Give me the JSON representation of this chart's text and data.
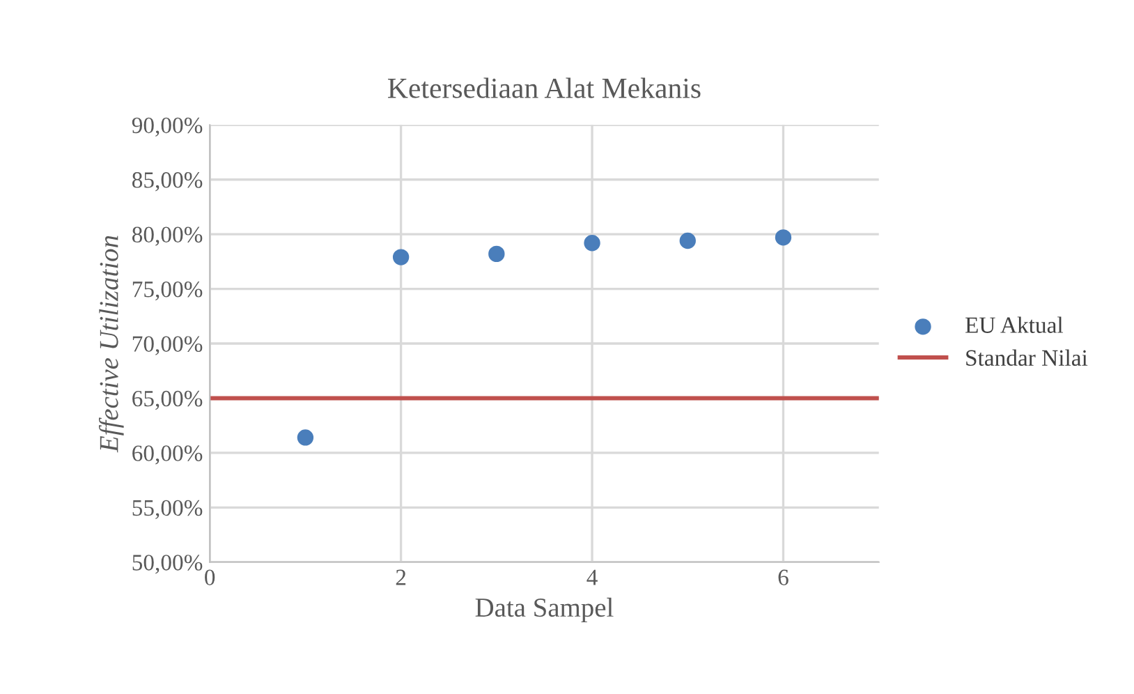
{
  "chart_data": {
    "type": "scatter",
    "title": "Ketersediaan Alat Mekanis",
    "xlabel": "Data Sampel",
    "ylabel": "Effective Utilization",
    "series": [
      {
        "name": "EU Aktual",
        "color": "#4a7ebb",
        "marker": "circle",
        "x": [
          1,
          2,
          3,
          4,
          5,
          6
        ],
        "values": [
          61.4,
          77.9,
          78.2,
          79.2,
          79.4,
          79.7
        ]
      },
      {
        "name": "Standar Nilai",
        "type": "line",
        "color": "#c0504d",
        "x": [
          0,
          7
        ],
        "values": [
          65,
          65
        ]
      }
    ],
    "xlim": [
      0,
      7
    ],
    "xticks": [
      0,
      2,
      4,
      6
    ],
    "ylim": [
      50,
      90
    ],
    "yticks": [
      {
        "value": 50,
        "label": "50,00%"
      },
      {
        "value": 55,
        "label": "55,00%"
      },
      {
        "value": 60,
        "label": "60,00%"
      },
      {
        "value": 65,
        "label": "65,00%"
      },
      {
        "value": 70,
        "label": "70,00%"
      },
      {
        "value": 75,
        "label": "75,00%"
      },
      {
        "value": 80,
        "label": "80,00%"
      },
      {
        "value": 85,
        "label": "85,00%"
      },
      {
        "value": 90,
        "label": "90,00%"
      }
    ],
    "grid": true,
    "legend": "right"
  }
}
